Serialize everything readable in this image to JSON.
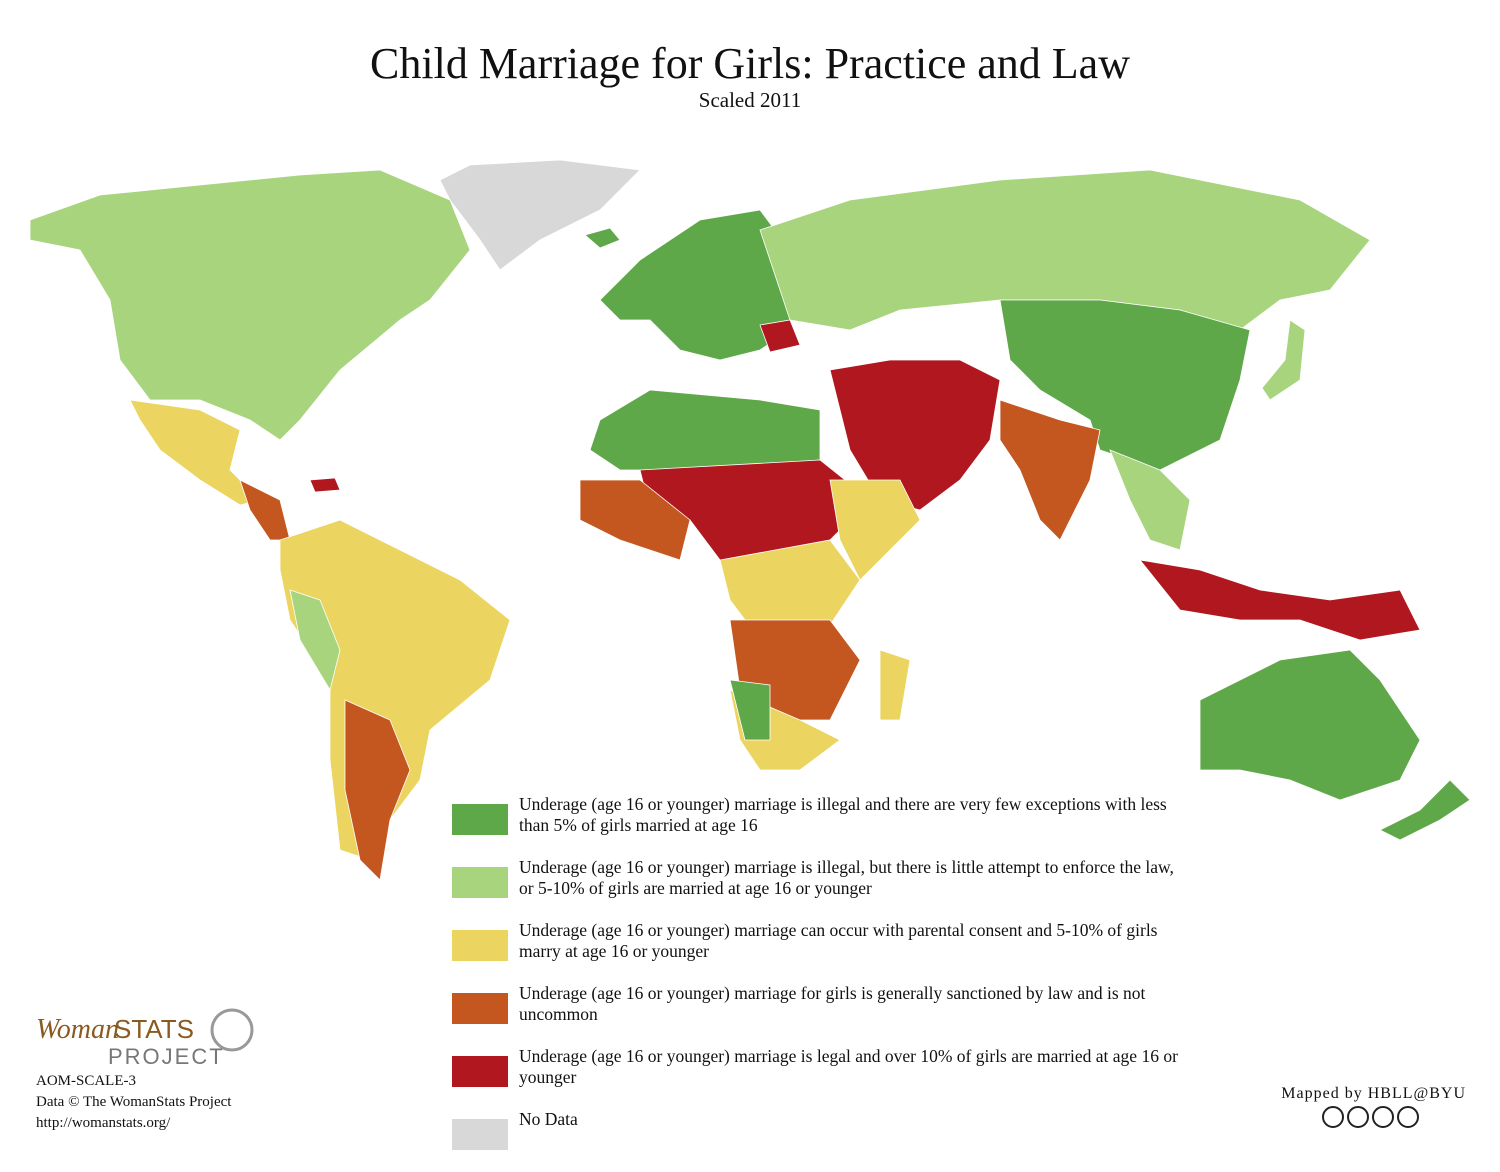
{
  "header": {
    "title": "Child Marriage for Girls: Practice and Law",
    "subtitle": "Scaled 2011"
  },
  "legend": [
    {
      "color": "#5fa84a",
      "label": "Underage (age 16 or younger) marriage  is illegal and there are very few exceptions with less than 5% of girls married at age 16"
    },
    {
      "color": "#a8d47e",
      "label": "Underage (age 16 or younger) marriage is illegal, but there is little attempt to enforce the law, or 5-10% of girls are married at age 16 or younger"
    },
    {
      "color": "#ecd460",
      "label": "Underage (age 16 or younger) marriage can occur with parental consent and 5-10% of girls marry at age 16 or younger"
    },
    {
      "color": "#c4561f",
      "label": "Underage (age 16 or younger) marriage for girls is generally sanctioned by law and is not uncommon"
    },
    {
      "color": "#b0171f",
      "label": "Underage (age 16 or younger) marriage is legal and over 10% of girls are married at age 16 or younger"
    },
    {
      "color": "#d8d8d8",
      "label": "No Data"
    }
  ],
  "logo": {
    "woman": "Woman",
    "stats": "STATS",
    "project": "PROJECT"
  },
  "footer": {
    "code": "AOM-SCALE-3",
    "credit": "Data © The WomanStats Project",
    "url": "http://womanstats.org/",
    "mapped_by": "Mapped by HBLL@BYU"
  }
}
